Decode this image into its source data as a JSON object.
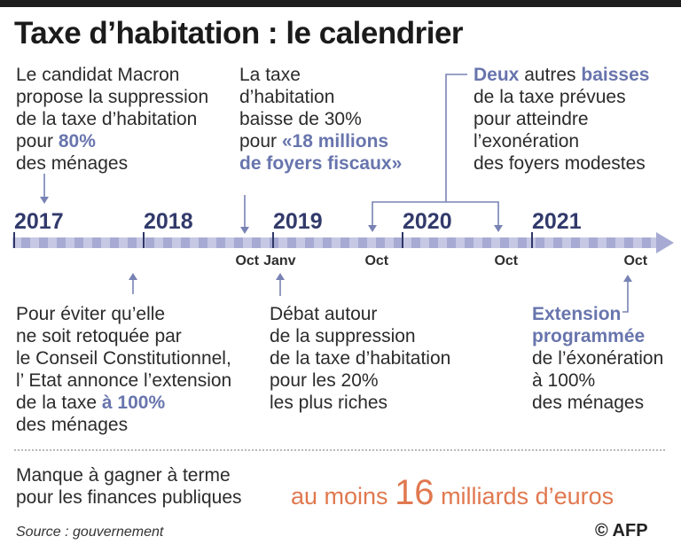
{
  "title": "Taxe d’habitation : le calendrier",
  "timeline": {
    "years": [
      {
        "label": "2017",
        "position": 0
      },
      {
        "label": "2018",
        "position": 1
      },
      {
        "label": "2019",
        "position": 2
      },
      {
        "label": "2020",
        "position": 3
      },
      {
        "label": "2021",
        "position": 4
      }
    ],
    "months": [
      {
        "label": "Oct",
        "position": 1.8
      },
      {
        "label": "Janv",
        "position": 2.05
      },
      {
        "label": "Oct",
        "position": 2.8
      },
      {
        "label": "Oct",
        "position": 3.8
      },
      {
        "label": "Oct",
        "position": 4.8
      }
    ]
  },
  "events": {
    "e1": {
      "l1": "Le candidat Macron",
      "l2": "propose la suppression",
      "l3": "de la taxe d’habitation",
      "l4a": "pour ",
      "l4b": "80%",
      "l5": "des ménages"
    },
    "e2": {
      "l1": "La taxe",
      "l2": "d’habitation",
      "l3": "baisse de 30%",
      "l4a": "pour ",
      "l4b": "«18 millions",
      "l5": "de foyers fiscaux»"
    },
    "e3": {
      "l1a": "Deux",
      "l1b": " autres ",
      "l1c": "baisses",
      "l2": "de la taxe prévues",
      "l3": "pour atteindre",
      "l4": "l’exonération",
      "l5": "des foyers modestes"
    },
    "e4": {
      "l1": "Pour éviter qu’elle",
      "l2": "ne soit retoquée par",
      "l3": "le Conseil Constitutionnel,",
      "l4": "l’ Etat annonce l’extension",
      "l5a": "de la taxe ",
      "l5b": "à 100%",
      "l6": "des ménages"
    },
    "e5": {
      "l1": "Débat autour",
      "l2": "de la suppression",
      "l3": "de la taxe d’habitation",
      "l4": "pour les 20%",
      "l5": "les plus riches"
    },
    "e6": {
      "l1": "Extension",
      "l2": "programmée",
      "l3": "de l’éxonération",
      "l4": "à 100%",
      "l5": "des ménages"
    }
  },
  "footer": {
    "loss_l1": "Manque à gagner à terme",
    "loss_l2": "pour les finances publiques",
    "amount_a": "au moins ",
    "amount_b": "16",
    "amount_c": " milliards d’euros",
    "source": "Source : gouvernement",
    "credit": "© AFP"
  },
  "colors": {
    "accent": "#6875ad",
    "year": "#323a6b",
    "amount": "#e0784f",
    "axis_light": "#c6c8e4",
    "axis_dark": "#a7abd3"
  }
}
